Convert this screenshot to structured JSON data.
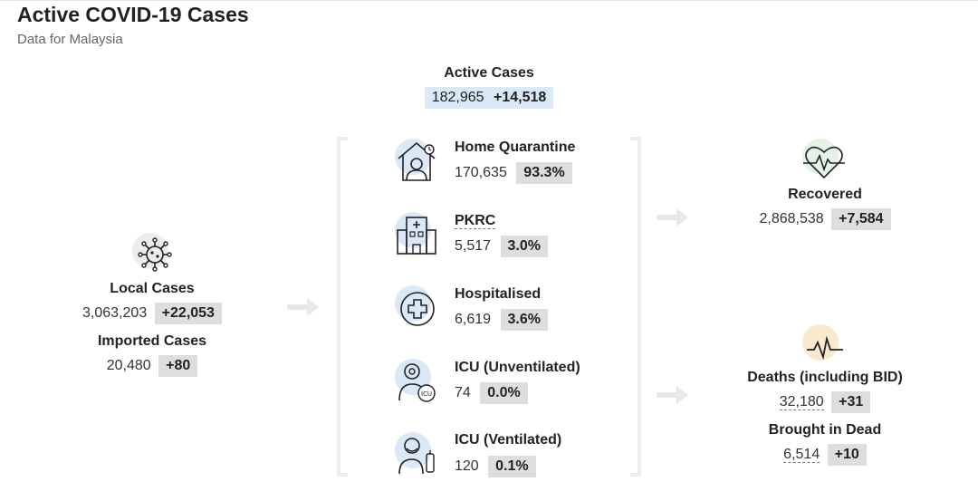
{
  "header": {
    "title": "Active COVID-19 Cases",
    "subtitle": "Data for Malaysia"
  },
  "active": {
    "label": "Active Cases",
    "value": "182,965",
    "delta": "+14,518"
  },
  "left": {
    "local_label": "Local Cases",
    "local_value": "3,063,203",
    "local_delta": "+22,053",
    "imported_label": "Imported Cases",
    "imported_value": "20,480",
    "imported_delta": "+80",
    "icon": "virus-icon"
  },
  "middle": {
    "items": [
      {
        "label": "Home Quarantine",
        "value": "170,635",
        "pct": "93.3%",
        "icon": "home-quarantine-icon"
      },
      {
        "label": "PKRC",
        "value": "5,517",
        "pct": "3.0%",
        "icon": "hospital-building-icon"
      },
      {
        "label": "Hospitalised",
        "value": "6,619",
        "pct": "3.6%",
        "icon": "medical-cross-icon"
      },
      {
        "label": "ICU (Unventilated)",
        "value": "74",
        "pct": "0.0%",
        "icon": "icu-patient-icon"
      },
      {
        "label": "ICU (Ventilated)",
        "value": "120",
        "pct": "0.1%",
        "icon": "ventilator-icon"
      }
    ]
  },
  "right": {
    "recovered_label": "Recovered",
    "recovered_value": "2,868,538",
    "recovered_delta": "+7,584",
    "deaths_label": "Deaths (including BID)",
    "deaths_value": "32,180",
    "deaths_delta": "+31",
    "bid_label": "Brought in Dead",
    "bid_value": "6,514",
    "bid_delta": "+10"
  },
  "colors": {
    "blue_highlight": "#dbe8f7",
    "grey_badge": "#dedede",
    "green_circle": "#e3f3e6",
    "orange_circle": "#fbe9cf",
    "blue_circle": "#dbe8f7"
  }
}
